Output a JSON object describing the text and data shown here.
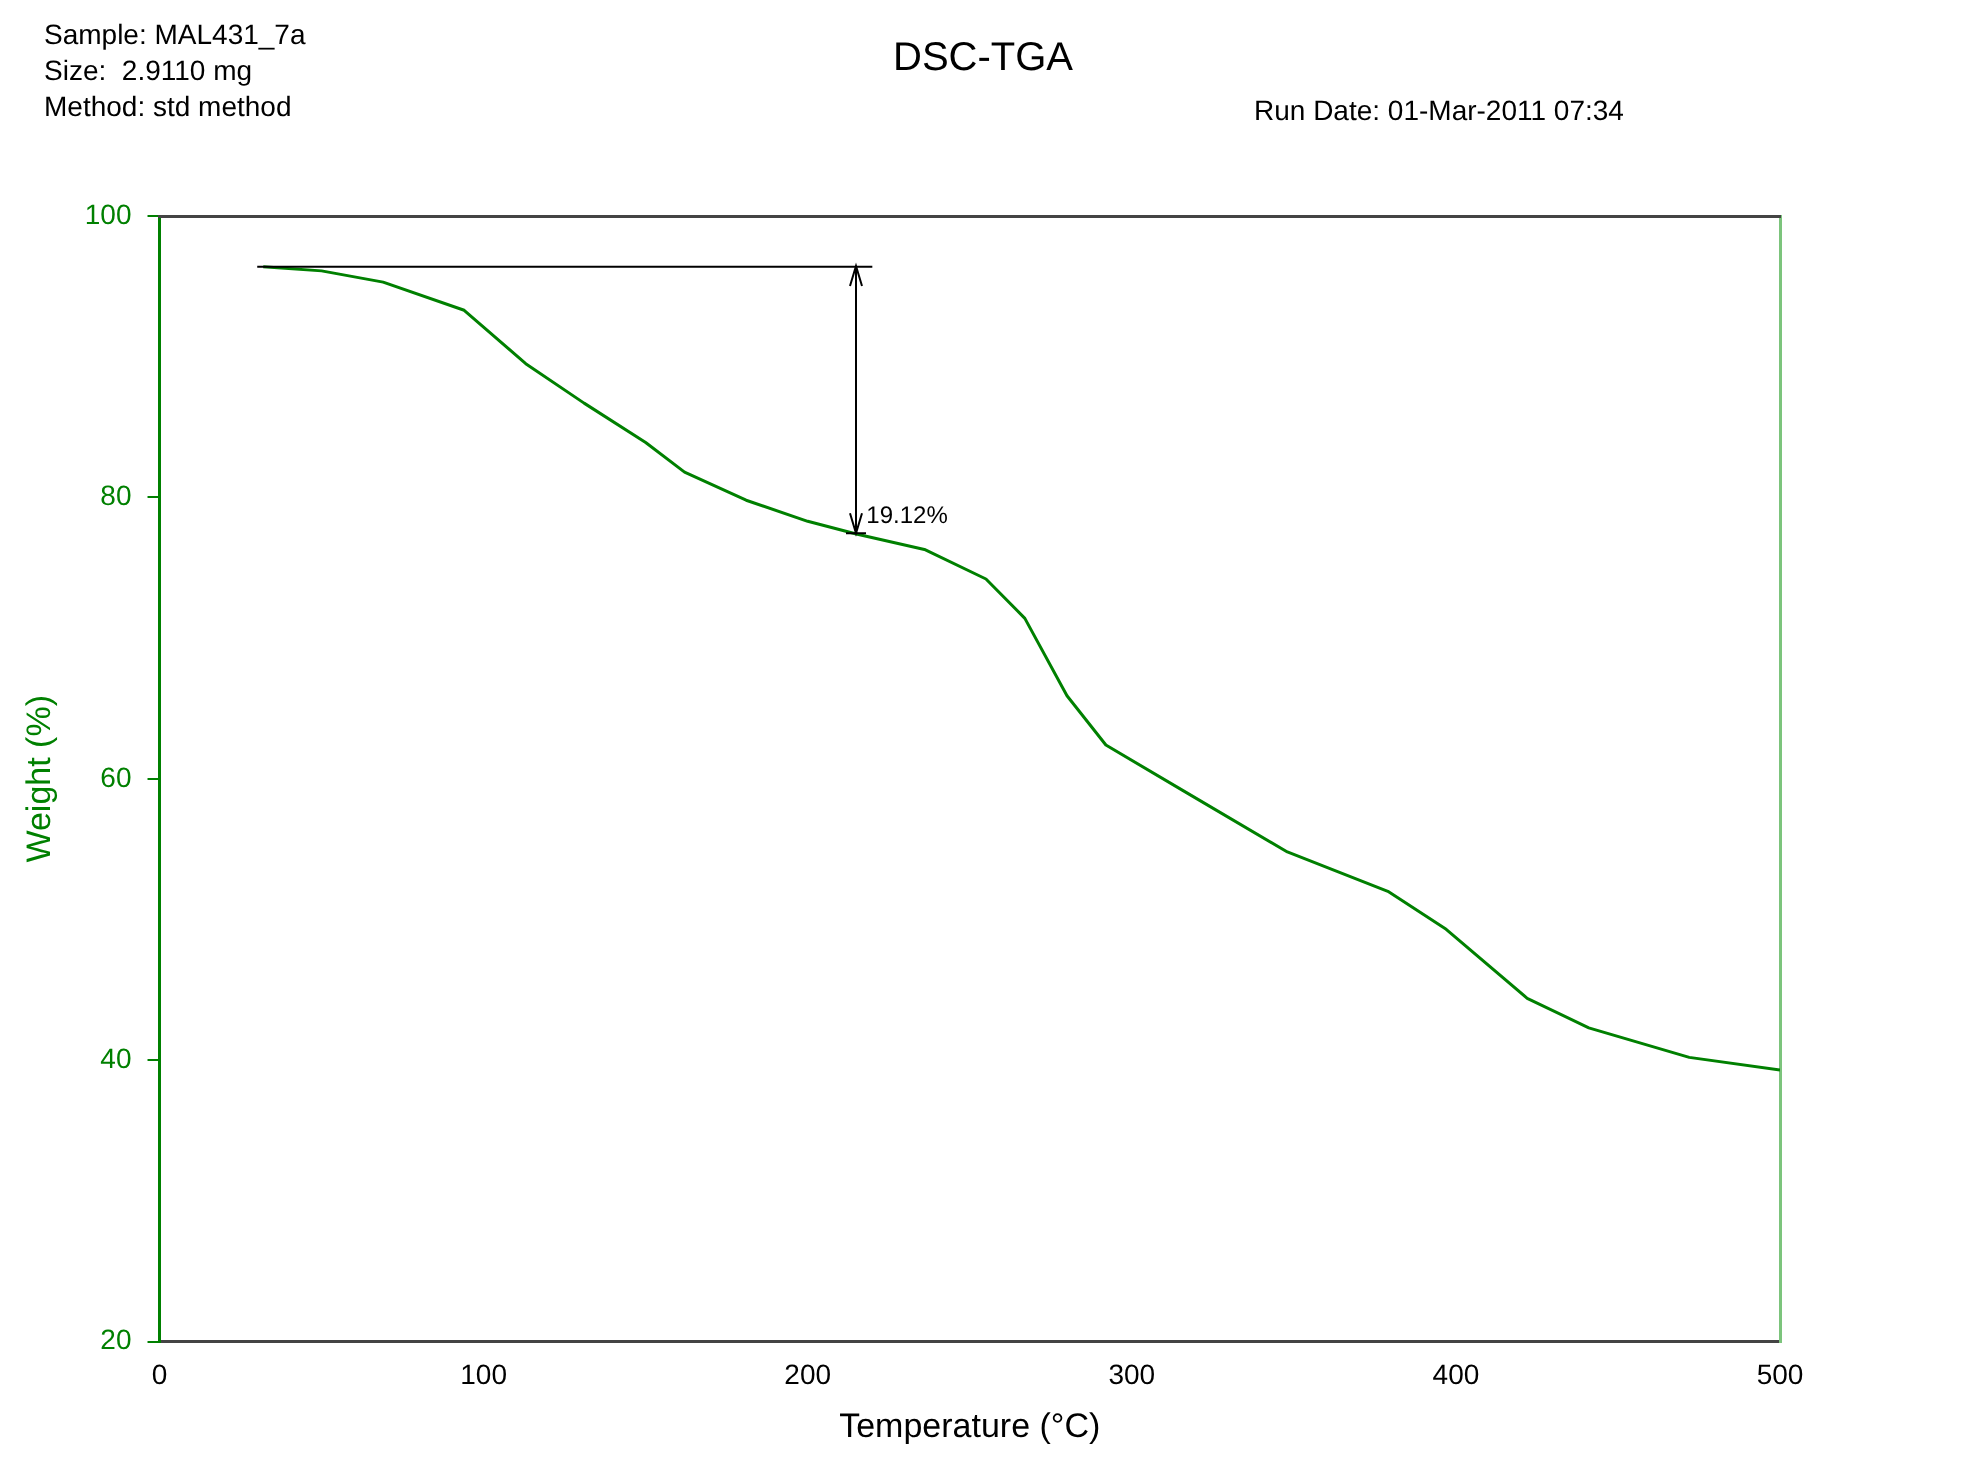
{
  "chart_data": {
    "type": "line",
    "title": "DSC-TGA",
    "x": [
      32,
      50,
      69,
      94,
      113,
      131,
      150,
      162,
      181,
      200,
      215,
      236,
      255,
      267,
      280,
      292,
      317,
      348,
      379,
      397,
      422,
      441,
      472,
      500
    ],
    "series": [
      {
        "color": "#008000",
        "values": [
          96.4,
          96.1,
          95.3,
          93.3,
          89.5,
          86.7,
          83.9,
          81.8,
          79.8,
          78.3,
          77.4,
          76.3,
          74.2,
          71.4,
          65.9,
          62.4,
          59.0,
          54.8,
          52.0,
          49.3,
          44.4,
          42.3,
          40.2,
          39.3
        ]
      }
    ],
    "xlim": [
      0,
      500
    ],
    "xticks": [
      0,
      100,
      200,
      300,
      400,
      500
    ],
    "ylim": [
      20,
      100
    ],
    "yticks": [
      20,
      40,
      60,
      80,
      100
    ],
    "xlabel": "Temperature (°C)",
    "ylabel": "Weight (%)",
    "grid": false,
    "legend": false,
    "marker": "none",
    "line_style": "solid",
    "ref_lines": [
      {
        "axis": "y",
        "value": 96.4,
        "color": "#000000",
        "line_style": "solid"
      }
    ],
    "annotations": [
      "Sample: MAL431_7a",
      "Size:  2.9110 mg",
      "Method: std method",
      "Run Date: 01-Mar-2011 07:34",
      {
        "text": "19.12%",
        "x": 215,
        "y": 77.4
      }
    ]
  }
}
